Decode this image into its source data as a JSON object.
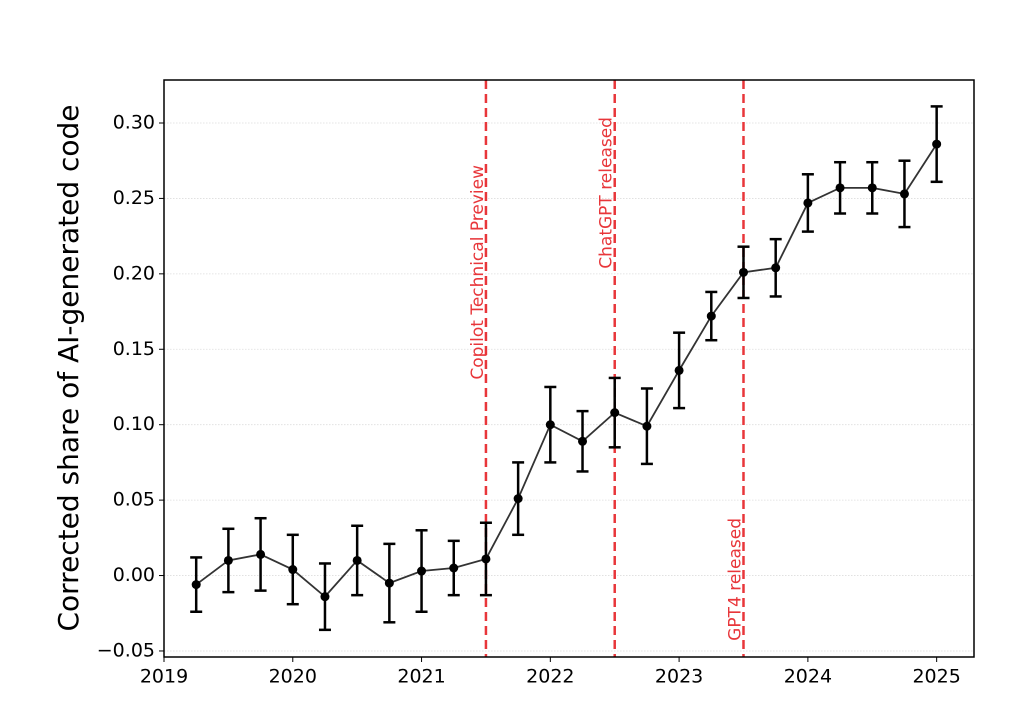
{
  "chart_data": {
    "type": "line",
    "ylabel": "Corrected share of AI-generated code",
    "x": [
      2019.25,
      2019.5,
      2019.75,
      2020,
      2020.25,
      2020.5,
      2020.75,
      2021,
      2021.25,
      2021.5,
      2021.75,
      2022,
      2022.25,
      2022.5,
      2022.75,
      2023,
      2023.25,
      2023.5,
      2023.75,
      2024,
      2024.25,
      2024.5,
      2024.75,
      2025
    ],
    "series": [
      {
        "color": "#000000",
        "line_color": "#333333",
        "values": [
          -0.006,
          0.01,
          0.014,
          0.004,
          -0.014,
          0.01,
          -0.005,
          0.003,
          0.005,
          0.011,
          0.051,
          0.1,
          0.089,
          0.108,
          0.099,
          0.136,
          0.172,
          0.201,
          0.204,
          0.247,
          0.257,
          0.257,
          0.253,
          0.286
        ],
        "errors": [
          0.018,
          0.021,
          0.024,
          0.023,
          0.022,
          0.023,
          0.026,
          0.027,
          0.018,
          0.024,
          0.024,
          0.025,
          0.02,
          0.023,
          0.025,
          0.025,
          0.016,
          0.017,
          0.019,
          0.019,
          0.017,
          0.017,
          0.022,
          0.025
        ]
      }
    ],
    "annotations": [
      {
        "x": 2021.5,
        "text": "Copilot Technical Preview"
      },
      {
        "x": 2022.5,
        "text": "ChatGPT released"
      },
      {
        "x": 2023.5,
        "text": "GPT4 released"
      }
    ],
    "annotation_color": "#e8363a",
    "xlim": [
      2019,
      2025.29
    ],
    "xticks": [
      2019,
      2020,
      2021,
      2022,
      2023,
      2024,
      2025
    ],
    "ylim": [
      -0.054,
      0.3285
    ],
    "yticks": [
      {
        "value": -0.05,
        "label": "−0.05"
      },
      {
        "value": 0,
        "label": "0.00"
      },
      {
        "value": 0.05,
        "label": "0.05"
      },
      {
        "value": 0.1,
        "label": "0.10"
      },
      {
        "value": 0.15,
        "label": "0.15"
      },
      {
        "value": 0.2,
        "label": "0.20"
      },
      {
        "value": 0.25,
        "label": "0.25"
      },
      {
        "value": 0.3,
        "label": "0.30"
      }
    ],
    "grid": true
  }
}
